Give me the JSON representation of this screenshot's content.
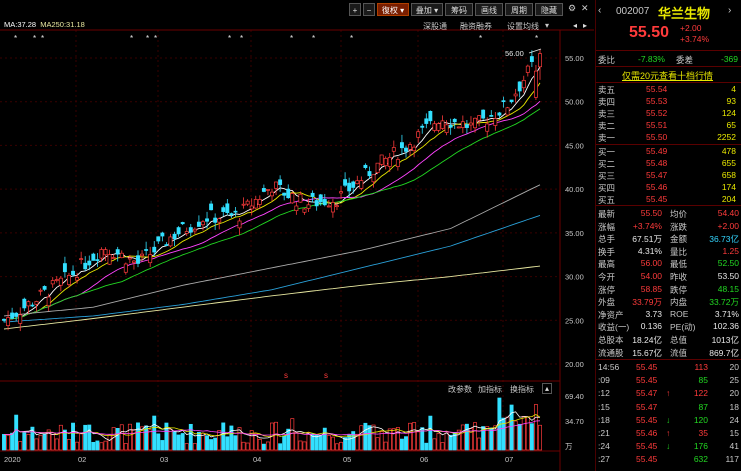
{
  "toolbar": {
    "buttons": [
      "+",
      "−",
      "復权",
      "叠加",
      "筹码",
      "画线",
      "周期",
      "隐藏"
    ],
    "sub_links": [
      "深股通",
      "融资融券",
      "设置均线"
    ]
  },
  "ma_legend": {
    "ma_a": "MA:37.28",
    "ma250": "MA250:31.18"
  },
  "price_axis": [
    "55.00",
    "50.00",
    "45.00",
    "40.00",
    "35.00",
    "30.00",
    "25.00",
    "20.00"
  ],
  "max_label": "56.00",
  "volume_axis": [
    "69.40",
    "34.70",
    "万"
  ],
  "volume_links": [
    "改参数",
    "加指标",
    "换指标"
  ],
  "date_labels": [
    "2020",
    "02",
    "03",
    "04",
    "05",
    "06",
    "07"
  ],
  "markers": {
    "red_s": "s"
  },
  "chart_data": {
    "type": "candlestick",
    "title": "",
    "ylabel": "",
    "ylim": [
      19,
      57
    ],
    "x": [
      "2020",
      "02",
      "03",
      "04",
      "05",
      "06",
      "07"
    ],
    "series": [
      {
        "name": "MA250",
        "values": [
          24.0,
          25.2,
          26.5,
          27.8,
          29.0,
          30.0,
          31.2
        ]
      },
      {
        "name": "MA:37.28",
        "values": [
          25.0,
          27.0,
          29.5,
          31.0,
          32.5,
          35.0,
          37.3
        ]
      }
    ],
    "close_path": [
      25.0,
      27.5,
      30.2,
      33.4,
      31.5,
      34.6,
      36.8,
      37.0,
      40.4,
      38.3,
      39.0,
      42.3,
      44.9,
      48.2,
      47.1,
      49.5,
      55.5
    ]
  },
  "stock": {
    "code": "002007",
    "name": "华兰生物",
    "price": "55.50",
    "change": "+2.00",
    "change_pct": "+3.74%"
  },
  "ratio": {
    "label1": "委比",
    "value1": "-7.83%",
    "label2": "委差",
    "value2": "-369"
  },
  "promo": "仅需20元查看十档行情",
  "asks": [
    {
      "label": "卖五",
      "price": "55.54",
      "vol": "4"
    },
    {
      "label": "卖四",
      "price": "55.53",
      "vol": "93"
    },
    {
      "label": "卖三",
      "price": "55.52",
      "vol": "124"
    },
    {
      "label": "卖二",
      "price": "55.51",
      "vol": "65"
    },
    {
      "label": "卖一",
      "price": "55.50",
      "vol": "2252"
    }
  ],
  "bids": [
    {
      "label": "买一",
      "price": "55.49",
      "vol": "478"
    },
    {
      "label": "买二",
      "price": "55.48",
      "vol": "655"
    },
    {
      "label": "买三",
      "price": "55.47",
      "vol": "658"
    },
    {
      "label": "买四",
      "price": "55.46",
      "vol": "174"
    },
    {
      "label": "买五",
      "price": "55.45",
      "vol": "204"
    }
  ],
  "stats": [
    {
      "l1": "最新",
      "v1": "55.50",
      "c1": "red",
      "l2": "均价",
      "v2": "54.40",
      "c2": "red"
    },
    {
      "l1": "涨幅",
      "v1": "+3.74%",
      "c1": "red",
      "l2": "涨跌",
      "v2": "+2.00",
      "c2": "red"
    },
    {
      "l1": "总手",
      "v1": "67.51万",
      "c1": "white",
      "l2": "金额",
      "v2": "36.73亿",
      "c2": "cyan"
    },
    {
      "l1": "换手",
      "v1": "4.31%",
      "c1": "white",
      "l2": "量比",
      "v2": "1.25",
      "c2": "red"
    },
    {
      "l1": "最高",
      "v1": "56.00",
      "c1": "red",
      "l2": "最低",
      "v2": "52.50",
      "c2": "green"
    },
    {
      "l1": "今开",
      "v1": "54.00",
      "c1": "red",
      "l2": "昨收",
      "v2": "53.50",
      "c2": "white"
    },
    {
      "l1": "涨停",
      "v1": "58.85",
      "c1": "red",
      "l2": "跌停",
      "v2": "48.15",
      "c2": "green"
    },
    {
      "l1": "外盘",
      "v1": "33.79万",
      "c1": "red",
      "l2": "内盘",
      "v2": "33.72万",
      "c2": "green"
    },
    {
      "l1": "净资产",
      "v1": "3.73",
      "c1": "white",
      "l2": "ROE",
      "v2": "3.71%",
      "c2": "white"
    },
    {
      "l1": "收益(一)",
      "v1": "0.136",
      "c1": "white",
      "l2": "PE(动)",
      "v2": "102.36",
      "c2": "white"
    },
    {
      "l1": "总股本",
      "v1": "18.24亿",
      "c1": "white",
      "l2": "总值",
      "v2": "1013亿",
      "c2": "white"
    },
    {
      "l1": "流通股",
      "v1": "15.67亿",
      "c1": "white",
      "l2": "流值",
      "v2": "869.7亿",
      "c2": "white"
    }
  ],
  "trades": [
    {
      "time": "14:56",
      "price": "55.45",
      "vol": "113",
      "num": "20",
      "arrow": "",
      "color": "red"
    },
    {
      "time": ":09",
      "price": "55.45",
      "vol": "85",
      "num": "25",
      "arrow": "",
      "color": "green"
    },
    {
      "time": ":12",
      "price": "55.47",
      "vol": "122",
      "num": "20",
      "arrow": "↑",
      "color": "red"
    },
    {
      "time": ":15",
      "price": "55.47",
      "vol": "87",
      "num": "18",
      "arrow": "",
      "color": "green"
    },
    {
      "time": ":18",
      "price": "55.45",
      "vol": "120",
      "num": "24",
      "arrow": "↓",
      "color": "green"
    },
    {
      "time": ":21",
      "price": "55.46",
      "vol": "35",
      "num": "15",
      "arrow": "↑",
      "color": "red"
    },
    {
      "time": ":24",
      "price": "55.45",
      "vol": "176",
      "num": "41",
      "arrow": "↓",
      "color": "green"
    },
    {
      "time": ":27",
      "price": "55.45",
      "vol": "632",
      "num": "117",
      "arrow": "",
      "color": "green"
    }
  ],
  "colors": {
    "up": "#ff3b3b",
    "down": "#33e0ff",
    "ma5": "#ffffff",
    "ma10": "#e8e800",
    "ma20": "#ff44ff",
    "ma30": "#22d822",
    "ma60": "#aaaaaa",
    "ma120": "#2aa0d8",
    "ma250": "#e8e8a0"
  }
}
